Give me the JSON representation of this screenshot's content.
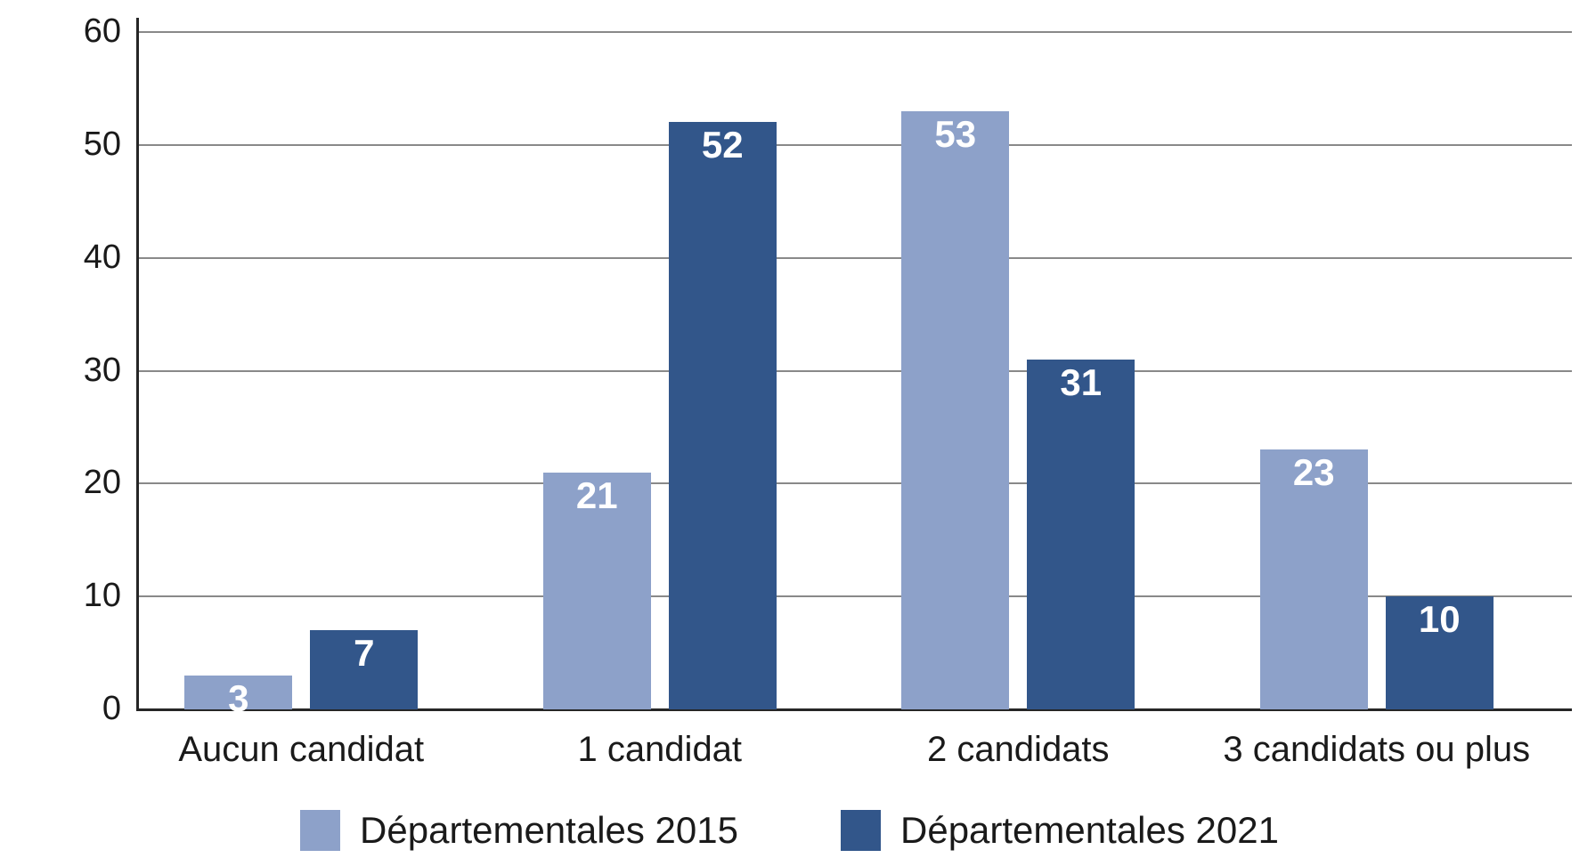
{
  "chart_data": {
    "type": "bar",
    "categories": [
      "Aucun candidat",
      "1 candidat",
      "2 candidats",
      "3 candidats ou plus"
    ],
    "series": [
      {
        "id": "departementales-2015",
        "name": "Départementales 2015",
        "color": "#8DA1C9",
        "values": [
          3,
          21,
          53,
          23
        ]
      },
      {
        "id": "departementales-2021",
        "name": "Départementales 2021",
        "color": "#32568A",
        "values": [
          7,
          52,
          31,
          10
        ]
      }
    ],
    "ylim": [
      0,
      60
    ],
    "yticks": [
      0,
      10,
      20,
      30,
      40,
      50,
      60
    ],
    "grid": true,
    "legend_position": "bottom",
    "value_labels": "inside-top",
    "colors": {
      "background": "#ffffff",
      "gridline": "#898989",
      "axis": "#262626",
      "tick_text": "#1a1a1a",
      "value_label_text": "#ffffff"
    }
  }
}
